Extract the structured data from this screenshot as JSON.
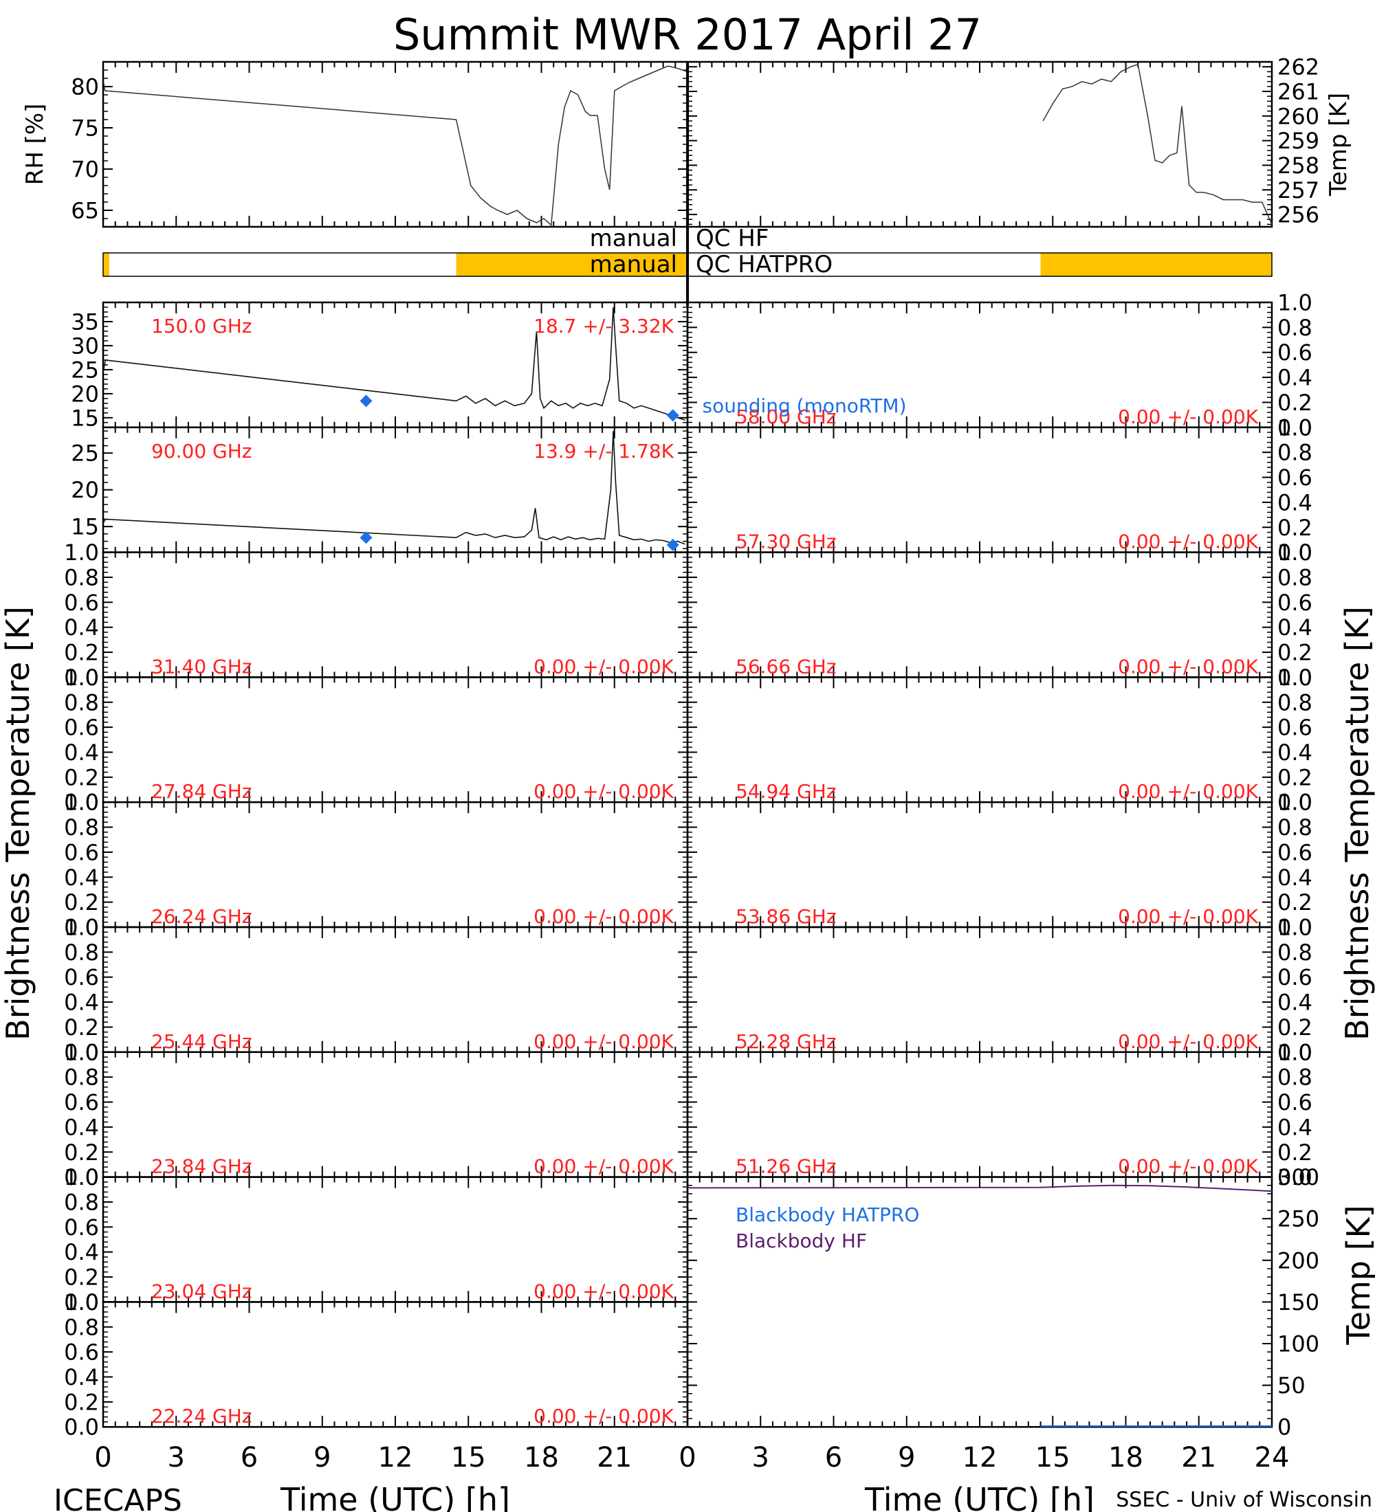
{
  "title": "Summit MWR 2017 April 27",
  "footer": {
    "left": "ICECAPS",
    "right": "SSEC - Univ of Wisconsin"
  },
  "axis_labels": {
    "left_time": "Time (UTC) [h]",
    "right_time": "Time (UTC) [h]",
    "left_tb": "Brightness Temperature [K]",
    "right_tb": "Brightness Temperature [K]",
    "rh": "RH [%]",
    "temp_top": "Temp [K]",
    "temp_bottom": "Temp [K]"
  },
  "qc": {
    "hf_label_left": "manual",
    "hf_label_right": "QC HF",
    "hatpro_label_left": "manual",
    "hatpro_label_right": "QC HATPRO",
    "bad_color": "#FFC200",
    "left_bad_ranges": [
      [
        0,
        0.25
      ],
      [
        14.5,
        24
      ]
    ],
    "right_bad_ranges": [
      [
        14.5,
        24
      ]
    ]
  },
  "legend": {
    "sounding": "sounding (monoRTM)",
    "bb_hatpro": "Blackbody HATPRO",
    "bb_hf": "Blackbody HF"
  },
  "colors": {
    "freq_label": "#FF2020",
    "sounding": "#1E6FE8",
    "bb_hatpro": "#1E6FE8",
    "bb_hf": "#5A1E6E"
  },
  "chart_data": [
    {
      "type": "line",
      "panel": "surface-met",
      "x_range": [
        0,
        24
      ],
      "x_ticks": [
        0,
        3,
        6,
        9,
        12,
        15,
        18,
        21,
        24
      ],
      "series": [
        {
          "name": "RH",
          "axis": "left",
          "ylim": [
            63,
            83
          ],
          "yticks": [
            65,
            70,
            75,
            80
          ],
          "x": [
            0.02,
            0.08,
            14.5,
            14.8,
            15.1,
            15.5,
            15.9,
            16.2,
            16.6,
            17.0,
            17.4,
            17.8,
            18.1,
            18.4,
            18.7,
            18.95,
            19.2,
            19.5,
            19.8,
            20.0,
            20.3,
            20.6,
            20.8,
            21.0,
            21.3,
            21.6,
            22.0,
            22.4,
            22.8,
            23.2,
            23.6,
            24.0
          ],
          "values": [
            80.5,
            79.5,
            76.0,
            72.0,
            68.0,
            66.5,
            65.5,
            65.0,
            64.5,
            65.0,
            64.0,
            63.5,
            64.0,
            63.2,
            73.0,
            77.5,
            79.5,
            79.0,
            77.0,
            76.5,
            76.5,
            70.0,
            67.5,
            79.5,
            80.0,
            80.5,
            81.0,
            81.5,
            82.0,
            82.5,
            82.2,
            81.8
          ]
        },
        {
          "name": "Temp",
          "axis": "right",
          "ylim": [
            255.5,
            262.2
          ],
          "yticks": [
            256,
            257,
            258,
            259,
            260,
            261,
            262
          ],
          "x": [
            14.6,
            15.0,
            15.4,
            15.8,
            16.2,
            16.6,
            17.0,
            17.4,
            17.8,
            18.2,
            18.5,
            18.9,
            19.2,
            19.5,
            19.8,
            20.1,
            20.3,
            20.6,
            20.9,
            21.2,
            21.6,
            22.0,
            22.4,
            22.8,
            23.2,
            23.6,
            24.0
          ],
          "values": [
            259.8,
            260.5,
            261.1,
            261.2,
            261.4,
            261.3,
            261.5,
            261.4,
            261.8,
            262.0,
            262.1,
            260.0,
            258.2,
            258.1,
            258.4,
            258.5,
            260.4,
            257.2,
            256.9,
            256.9,
            256.8,
            256.6,
            256.6,
            256.6,
            256.5,
            256.5,
            255.6
          ]
        }
      ]
    },
    {
      "type": "line",
      "panel": "tb-150",
      "freq_label": "150.0 GHz",
      "stats": "18.7 +/- 3.32K",
      "ylim": [
        13,
        39
      ],
      "yticks": [
        15,
        20,
        25,
        30,
        35
      ],
      "x": [
        0.0,
        0.1,
        14.5,
        14.9,
        15.3,
        15.7,
        16.1,
        16.5,
        16.9,
        17.3,
        17.6,
        17.8,
        17.95,
        18.1,
        18.4,
        18.7,
        19.0,
        19.3,
        19.6,
        19.9,
        20.2,
        20.5,
        20.8,
        20.95,
        21.05,
        21.2,
        21.5,
        21.8,
        22.1,
        22.4,
        22.7,
        23.0,
        23.3,
        23.6,
        23.9
      ],
      "values": [
        24.5,
        27.0,
        18.5,
        19.5,
        18.0,
        19.0,
        17.5,
        18.5,
        17.5,
        18.0,
        20.0,
        33.0,
        19.0,
        17.0,
        18.5,
        17.5,
        18.0,
        17.0,
        18.0,
        17.5,
        18.0,
        17.5,
        23.0,
        38.0,
        30.0,
        18.5,
        18.0,
        17.0,
        17.5,
        17.0,
        16.5,
        16.0,
        15.5,
        15.0,
        14.5
      ],
      "sounding": {
        "x": [
          10.8,
          23.4
        ],
        "values": [
          18.5,
          15.5
        ]
      }
    },
    {
      "type": "line",
      "panel": "tb-90",
      "freq_label": "90.00 GHz",
      "stats": "13.9 +/- 1.78K",
      "ylim": [
        11.5,
        28.5
      ],
      "yticks": [
        15,
        20,
        25
      ],
      "x": [
        0.0,
        0.1,
        14.5,
        14.9,
        15.3,
        15.7,
        16.1,
        16.5,
        16.9,
        17.3,
        17.6,
        17.75,
        17.9,
        18.2,
        18.5,
        18.8,
        19.1,
        19.4,
        19.7,
        20.0,
        20.3,
        20.6,
        20.85,
        20.95,
        21.05,
        21.2,
        21.5,
        21.8,
        22.1,
        22.4,
        22.7,
        23.0,
        23.3,
        23.6,
        23.9
      ],
      "values": [
        15.5,
        16.0,
        13.5,
        14.2,
        13.8,
        14.0,
        13.5,
        13.8,
        13.5,
        13.6,
        14.5,
        17.5,
        13.5,
        13.2,
        13.6,
        13.2,
        13.6,
        13.3,
        13.5,
        13.2,
        13.4,
        13.3,
        20.0,
        28.0,
        21.0,
        13.8,
        13.5,
        13.2,
        13.3,
        13.0,
        13.2,
        13.1,
        12.8,
        13.0,
        12.6
      ],
      "sounding": {
        "x": [
          10.8,
          23.4
        ],
        "values": [
          13.5,
          12.5
        ]
      }
    },
    {
      "type": "line",
      "panel": "tb-3140",
      "freq_label": "31.40 GHz",
      "stats": "0.00 +/- 0.00K",
      "ylim": [
        0,
        1
      ],
      "x": [],
      "values": []
    },
    {
      "type": "line",
      "panel": "tb-2784",
      "freq_label": "27.84 GHz",
      "stats": "0.00 +/- 0.00K",
      "ylim": [
        0,
        1
      ],
      "x": [],
      "values": []
    },
    {
      "type": "line",
      "panel": "tb-2624",
      "freq_label": "26.24 GHz",
      "stats": "0.00 +/- 0.00K",
      "ylim": [
        0,
        1
      ],
      "x": [],
      "values": []
    },
    {
      "type": "line",
      "panel": "tb-2544",
      "freq_label": "25.44 GHz",
      "stats": "0.00 +/- 0.00K",
      "ylim": [
        0,
        1
      ],
      "x": [],
      "values": []
    },
    {
      "type": "line",
      "panel": "tb-2384",
      "freq_label": "23.84 GHz",
      "stats": "0.00 +/- 0.00K",
      "ylim": [
        0,
        1
      ],
      "x": [],
      "values": []
    },
    {
      "type": "line",
      "panel": "tb-2304",
      "freq_label": "23.04 GHz",
      "stats": "0.00 +/- 0.00K",
      "ylim": [
        0,
        1
      ],
      "x": [],
      "values": []
    },
    {
      "type": "line",
      "panel": "tb-2224",
      "freq_label": "22.24 GHz",
      "stats": "0.00 +/- 0.00K",
      "ylim": [
        0,
        1
      ],
      "x": [],
      "values": []
    },
    {
      "type": "line",
      "panel": "tb-5800",
      "freq_label": "58.00 GHz",
      "stats": "0.00 +/- 0.00K",
      "ylim": [
        0,
        1
      ],
      "x": [],
      "values": []
    },
    {
      "type": "line",
      "panel": "tb-5730",
      "freq_label": "57.30 GHz",
      "stats": "0.00 +/- 0.00K",
      "ylim": [
        0,
        1
      ],
      "x": [],
      "values": []
    },
    {
      "type": "line",
      "panel": "tb-5666",
      "freq_label": "56.66 GHz",
      "stats": "0.00 +/- 0.00K",
      "ylim": [
        0,
        1
      ],
      "x": [],
      "values": []
    },
    {
      "type": "line",
      "panel": "tb-5494",
      "freq_label": "54.94 GHz",
      "stats": "0.00 +/- 0.00K",
      "ylim": [
        0,
        1
      ],
      "x": [],
      "values": []
    },
    {
      "type": "line",
      "panel": "tb-5386",
      "freq_label": "53.86 GHz",
      "stats": "0.00 +/- 0.00K",
      "ylim": [
        0,
        1
      ],
      "x": [],
      "values": []
    },
    {
      "type": "line",
      "panel": "tb-5228",
      "freq_label": "52.28 GHz",
      "stats": "0.00 +/- 0.00K",
      "ylim": [
        0,
        1
      ],
      "x": [],
      "values": []
    },
    {
      "type": "line",
      "panel": "tb-5126",
      "freq_label": "51.26 GHz",
      "stats": "0.00 +/- 0.00K",
      "ylim": [
        0,
        1
      ],
      "x": [],
      "values": []
    },
    {
      "type": "line",
      "panel": "blackbody",
      "ylim": [
        0,
        300
      ],
      "yticks": [
        0,
        50,
        100,
        150,
        200,
        250,
        300
      ],
      "series": [
        {
          "name": "Blackbody HF",
          "x": [
            0.0,
            0.1,
            14.5,
            16.0,
            17.5,
            19.0,
            20.5,
            22.0,
            23.0,
            24.0
          ],
          "values": [
            288,
            287,
            287.5,
            289,
            290,
            289.5,
            288,
            286,
            284.5,
            283
          ]
        },
        {
          "name": "Blackbody HATPRO",
          "x": [
            14.5,
            24.0
          ],
          "values": [
            1,
            1
          ]
        }
      ]
    }
  ]
}
